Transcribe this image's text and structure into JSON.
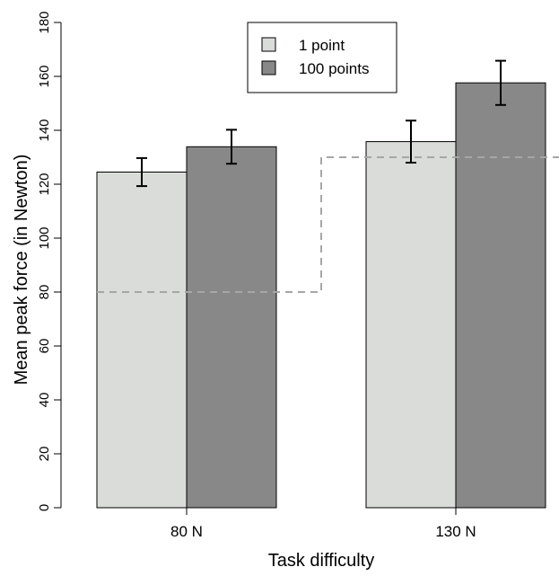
{
  "chart_data": {
    "type": "bar",
    "categories": [
      "80 N",
      "130 N"
    ],
    "series": [
      {
        "name": "1 point",
        "values": [
          124.5,
          135.8
        ],
        "error": [
          5.2,
          7.8
        ],
        "color": "#d9dcd9"
      },
      {
        "name": "100 points",
        "values": [
          133.9,
          157.6
        ],
        "error": [
          6.3,
          8.2
        ],
        "color": "#888888"
      }
    ],
    "xlabel": "Task difficulty",
    "ylabel": "Mean peak force (in Newton)",
    "ylim": [
      0,
      180
    ],
    "yticks": [
      0,
      20,
      40,
      60,
      80,
      100,
      120,
      140,
      160,
      180
    ],
    "target_line": {
      "levels": [
        80,
        130
      ],
      "style": "dashed",
      "color": "#a6a6a6"
    },
    "legend": {
      "placement": "top-center",
      "entries": [
        "1 point",
        "100 points"
      ]
    },
    "grid": false
  }
}
